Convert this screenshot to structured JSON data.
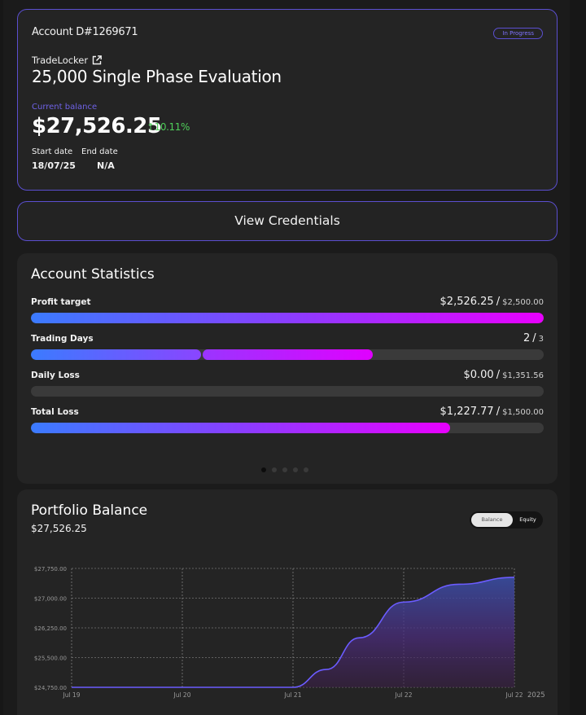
{
  "account": {
    "id_label": "Account D#1269671",
    "status": "In Progress",
    "platform": "TradeLocker",
    "plan_title": "25,000 Single Phase Evaluation",
    "balance_label": "Current balance",
    "balance_value": "$27,526.25",
    "balance_change": "↑10.11%",
    "start_label": "Start date",
    "start_value": "18/07/25",
    "end_label": "End date",
    "end_value": "N/A"
  },
  "credentials_button": "View Credentials",
  "stats": {
    "title": "Account Statistics",
    "items": [
      {
        "label": "Profit target",
        "value": "$2,526.25",
        "sep": "/",
        "max": "$2,500.00",
        "progress": 1.0
      },
      {
        "label": "Trading Days",
        "value": "2",
        "sep": "/",
        "max": "3",
        "progress": 0.667
      },
      {
        "label": "Daily Loss",
        "value": "$0.00",
        "sep": "/",
        "max": "$1,351.56",
        "progress": 0.0
      },
      {
        "label": "Total Loss",
        "value": "$1,227.77",
        "sep": "/",
        "max": "$1,500.00",
        "progress": 0.818
      }
    ],
    "page_count": 5,
    "active_page": 0
  },
  "portfolio": {
    "title": "Portfolio Balance",
    "balance": "$27,526.25",
    "toggle": {
      "balance_label": "Balance",
      "equity_label": "Equity",
      "selected": "Balance"
    }
  },
  "colors": {
    "accent": "#5b4fd0",
    "positive": "#4fcf5a",
    "gradient_start": "#3b7bff",
    "gradient_end": "#e800ff",
    "line": "#6b5cff"
  },
  "chart_data": {
    "type": "area",
    "x": [
      "Jul 19",
      "Jul 20",
      "Jul 21",
      "Jul 22",
      "Jul 22"
    ],
    "x_year": "2025",
    "series": [
      {
        "x": [
          0,
          1,
          2,
          2.3,
          2.6,
          3.0,
          3.5,
          4.0
        ],
        "y": [
          24750,
          24750,
          24750,
          25200,
          26000,
          26900,
          27350,
          27526.25
        ]
      }
    ],
    "y_ticks": [
      "$27,750.00",
      "$27,000.00",
      "$26,250.00",
      "$25,500.00",
      "$24,750.00"
    ],
    "ylim": [
      24750,
      27750
    ],
    "grid": true
  }
}
